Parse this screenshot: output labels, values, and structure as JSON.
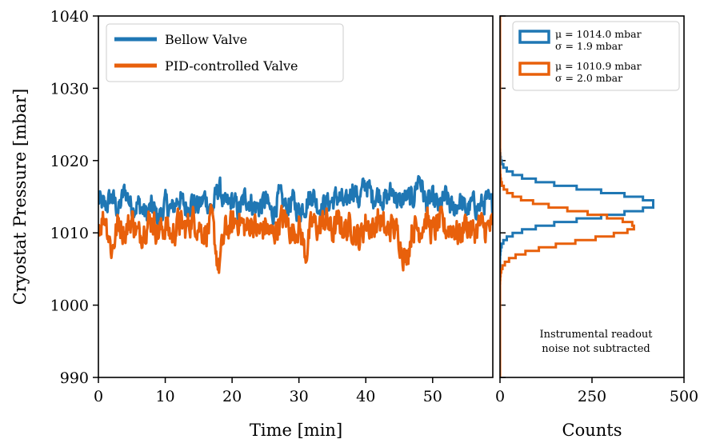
{
  "chart_data": [
    {
      "type": "line",
      "xlabel": "Time [min]",
      "ylabel": "Cryostat Pressure [mbar]",
      "xlim": [
        0,
        59
      ],
      "ylim": [
        990,
        1040
      ],
      "xticks": [
        "0",
        "10",
        "20",
        "30",
        "40",
        "50"
      ],
      "yticks": [
        "990",
        "1000",
        "1010",
        "1020",
        "1030",
        "1040"
      ],
      "legend_position": "top-left",
      "series": [
        {
          "name": "Bellow Valve",
          "color": "#1f77b4",
          "x": [
            0,
            1,
            2,
            3,
            4,
            5,
            6,
            7,
            8,
            9,
            10,
            11,
            12,
            13,
            14,
            15,
            16,
            17,
            18,
            19,
            20,
            21,
            22,
            23,
            24,
            25,
            26,
            27,
            28,
            29,
            30,
            31,
            32,
            33,
            34,
            35,
            36,
            37,
            38,
            39,
            40,
            41,
            42,
            43,
            44,
            45,
            46,
            47,
            48,
            49,
            50,
            51,
            52,
            53,
            54,
            55,
            56,
            57,
            58,
            59
          ],
          "values": [
            1014.5,
            1013.5,
            1015.0,
            1013.0,
            1016.0,
            1013.5,
            1014.0,
            1012.5,
            1013.5,
            1012.0,
            1014.0,
            1013.0,
            1015.0,
            1013.5,
            1014.5,
            1013.5,
            1015.0,
            1013.0,
            1016.5,
            1013.5,
            1014.5,
            1013.0,
            1015.0,
            1014.0,
            1013.5,
            1014.5,
            1012.5,
            1015.0,
            1013.5,
            1014.5,
            1013.0,
            1014.0,
            1015.5,
            1013.5,
            1014.0,
            1014.5,
            1015.0,
            1013.5,
            1016.5,
            1014.5,
            1017.0,
            1015.0,
            1015.5,
            1014.5,
            1016.0,
            1014.0,
            1015.0,
            1014.5,
            1018.0,
            1014.0,
            1014.5,
            1013.5,
            1015.0,
            1013.0,
            1014.5,
            1013.0,
            1014.0,
            1013.5,
            1014.5,
            1013.5
          ]
        },
        {
          "name": "PID-controlled Valve",
          "color": "#e8600b",
          "x": [
            0,
            1,
            2,
            3,
            4,
            5,
            6,
            7,
            8,
            9,
            10,
            11,
            12,
            13,
            14,
            15,
            16,
            17,
            18,
            19,
            20,
            21,
            22,
            23,
            24,
            25,
            26,
            27,
            28,
            29,
            30,
            31,
            32,
            33,
            34,
            35,
            36,
            37,
            38,
            39,
            40,
            41,
            42,
            43,
            44,
            45,
            46,
            47,
            48,
            49,
            50,
            51,
            52,
            53,
            54,
            55,
            56,
            57,
            58,
            59
          ],
          "values": [
            1011.0,
            1012.5,
            1007.5,
            1011.5,
            1010.0,
            1012.0,
            1009.5,
            1011.0,
            1012.0,
            1010.0,
            1011.0,
            1009.5,
            1011.5,
            1010.5,
            1012.0,
            1011.0,
            1010.0,
            1011.5,
            1005.0,
            1010.5,
            1011.0,
            1012.0,
            1010.5,
            1011.5,
            1010.0,
            1011.0,
            1009.5,
            1011.5,
            1012.0,
            1010.0,
            1011.0,
            1007.0,
            1011.5,
            1010.5,
            1012.0,
            1010.0,
            1011.5,
            1010.5,
            1011.0,
            1009.0,
            1011.5,
            1010.5,
            1012.0,
            1010.0,
            1011.0,
            1009.5,
            1006.0,
            1011.0,
            1010.5,
            1012.0,
            1010.0,
            1011.5,
            1010.5,
            1011.0,
            1009.5,
            1011.5,
            1010.0,
            1011.0,
            1010.5,
            1011.0
          ]
        }
      ]
    },
    {
      "type": "histogram",
      "orientation": "horizontal",
      "xlabel": "Counts",
      "xlim": [
        0,
        500
      ],
      "ylim": [
        990,
        1040
      ],
      "xticks": [
        "0",
        "250",
        "500"
      ],
      "legend_position": "top-right",
      "note": [
        "Instrumental readout",
        "noise not subtracted"
      ],
      "series": [
        {
          "name_line1": "μ = 1014.0 mbar",
          "name_line2": "σ = 1.9 mbar",
          "mean": 1014.0,
          "sigma": 1.9,
          "peak_count": 420,
          "color": "#1f77b4"
        },
        {
          "name_line1": "μ = 1010.9 mbar",
          "name_line2": "σ = 2.0 mbar",
          "mean": 1010.9,
          "sigma": 2.0,
          "peak_count": 365,
          "color": "#e8600b"
        }
      ]
    }
  ]
}
